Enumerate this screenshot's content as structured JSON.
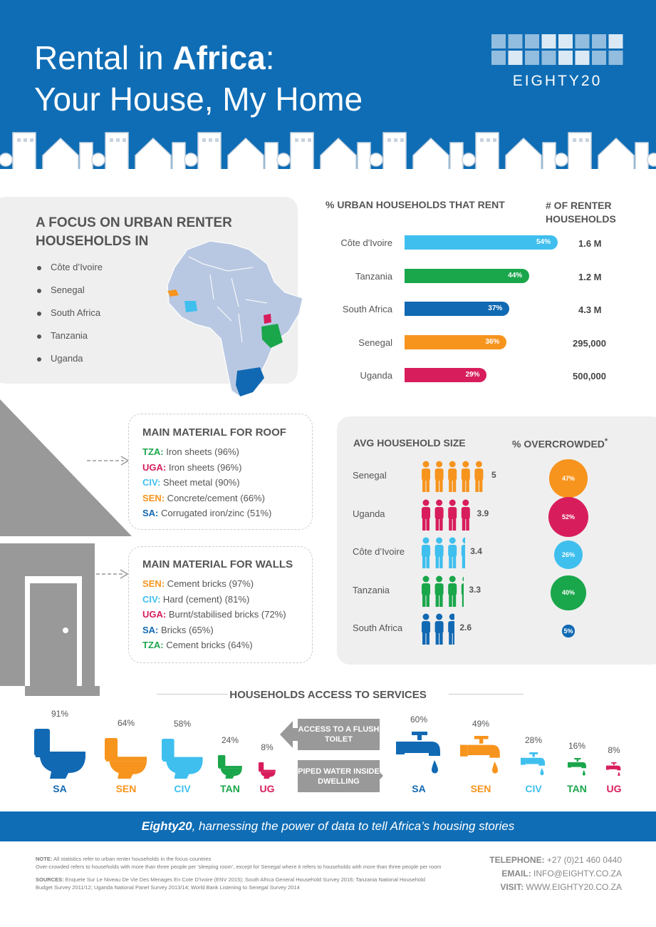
{
  "header": {
    "title_line1_a": "Rental in ",
    "title_line1_b": "Africa",
    "title_line1_c": ":",
    "title_line2": "Your House, My Home",
    "logo": "EIGHTY20"
  },
  "focus": {
    "title": "A FOCUS ON URBAN RENTER HOUSEHOLDS IN",
    "countries": [
      "Côte d’Ivoire",
      "Senegal",
      "South Africa",
      "Tanzania",
      "Uganda"
    ]
  },
  "colors": {
    "civ": "#3fbfee",
    "tza": "#1aa64b",
    "sa": "#1169b3",
    "sen": "#f7941d",
    "uga": "#d81d5c",
    "blue": "#0f6db5",
    "gray": "#999999"
  },
  "chart_data": [
    {
      "type": "bar",
      "title": "% URBAN HOUSEHOLDS THAT RENT",
      "categories": [
        "Côte d'Ivoire",
        "Tanzania",
        "South Africa",
        "Senegal",
        "Uganda"
      ],
      "values": [
        54,
        44,
        37,
        36,
        29
      ],
      "value_labels": [
        "54%",
        "44%",
        "37%",
        "36%",
        "29%"
      ],
      "column2_title": "# OF RENTER HOUSEHOLDS",
      "column2_values": [
        "1.6 M",
        "1.2 M",
        "4.3 M",
        "295,000",
        "500,000"
      ]
    },
    {
      "type": "bar",
      "title": "AVG HOUSEHOLD SIZE",
      "categories": [
        "Senegal",
        "Uganda",
        "Côte d’Ivoire",
        "Tanzania",
        "South Africa"
      ],
      "values": [
        5,
        3.9,
        3.4,
        3.3,
        2.6
      ],
      "value_labels": [
        "5",
        "3.9",
        "3.4",
        "3.3",
        "2.6"
      ]
    },
    {
      "type": "scatter",
      "title": "% OVERCROWDED",
      "title_mark": "*",
      "categories": [
        "Senegal",
        "Uganda",
        "Côte d’Ivoire",
        "Tanzania",
        "South Africa"
      ],
      "values": [
        47,
        52,
        26,
        40,
        5
      ],
      "value_labels": [
        "47%",
        "52%",
        "26%",
        "40%",
        "5%"
      ]
    },
    {
      "type": "bar",
      "title": "ACCESS TO A FLUSH TOILET",
      "categories": [
        "SA",
        "SEN",
        "CIV",
        "TAN",
        "UG"
      ],
      "values": [
        91,
        64,
        58,
        24,
        8
      ],
      "value_labels": [
        "91%",
        "64%",
        "58%",
        "24%",
        "8%"
      ]
    },
    {
      "type": "bar",
      "title": "PIPED WATER INSIDE DWELLING",
      "categories": [
        "SA",
        "SEN",
        "CIV",
        "TAN",
        "UG"
      ],
      "values": [
        60,
        49,
        28,
        16,
        8
      ],
      "value_labels": [
        "60%",
        "49%",
        "28%",
        "16%",
        "8%"
      ]
    }
  ],
  "roof": {
    "title": "MAIN MATERIAL FOR ROOF",
    "rows": [
      {
        "code": "TZA:",
        "text": " Iron sheets (96%)"
      },
      {
        "code": "UGA:",
        "text": " Iron sheets (96%)"
      },
      {
        "code": "CIV:",
        "text": " Sheet metal (90%)"
      },
      {
        "code": "SEN:",
        "text": " Concrete/cement (66%)"
      },
      {
        "code": "SA:",
        "text": " Corrugated iron/zinc (51%)"
      }
    ]
  },
  "walls": {
    "title": "MAIN MATERIAL FOR WALLS",
    "rows": [
      {
        "code": "SEN:",
        "text": " Cement bricks (97%)"
      },
      {
        "code": "CIV:",
        "text": " Hard (cement) (81%)"
      },
      {
        "code": "UGA:",
        "text": " Burnt/stabilised bricks (72%)"
      },
      {
        "code": "SA:",
        "text": " Bricks (65%)"
      },
      {
        "code": "TZA:",
        "text": " Cement bricks (64%)"
      }
    ]
  },
  "services": {
    "title": "HOUSEHOLDS ACCESS TO SERVICES",
    "toilet_label": "ACCESS TO A FLUSH TOILET",
    "water_label": "PIPED WATER INSIDE DWELLING"
  },
  "band": {
    "brand": "Eighty20",
    "text": ", harnessing the power of data to tell Africa’s housing stories"
  },
  "footer": {
    "note_label": "NOTE:",
    "note": " All statistics refer to urban renter households in the focus countries",
    "note2": "Over-crowded refers to households with more than three people per 'sleeping room', except for Senegal where it refers to households with more than three people per room",
    "sources_label": "SOURCES:",
    "sources": " Enquete Sur Le Niveau De Vie Des Menages En Cote D'Ivoire (ENV 2015); South Africa General Household Survey 2016; Tanzania National Household",
    "sources2": "Budget Survey 2011/12; Uganda National Panel Survey 2013/14; World Bank Listening to Senegal Survey 2014",
    "tel_label": "TELEPHONE:",
    "tel": " +27 (0)21 460 0440",
    "email_label": "EMAIL:",
    "email": " INFO@EIGHTY.CO.ZA",
    "visit_label": "VISIT:",
    "visit": " WWW.EIGHTY20.CO.ZA"
  }
}
